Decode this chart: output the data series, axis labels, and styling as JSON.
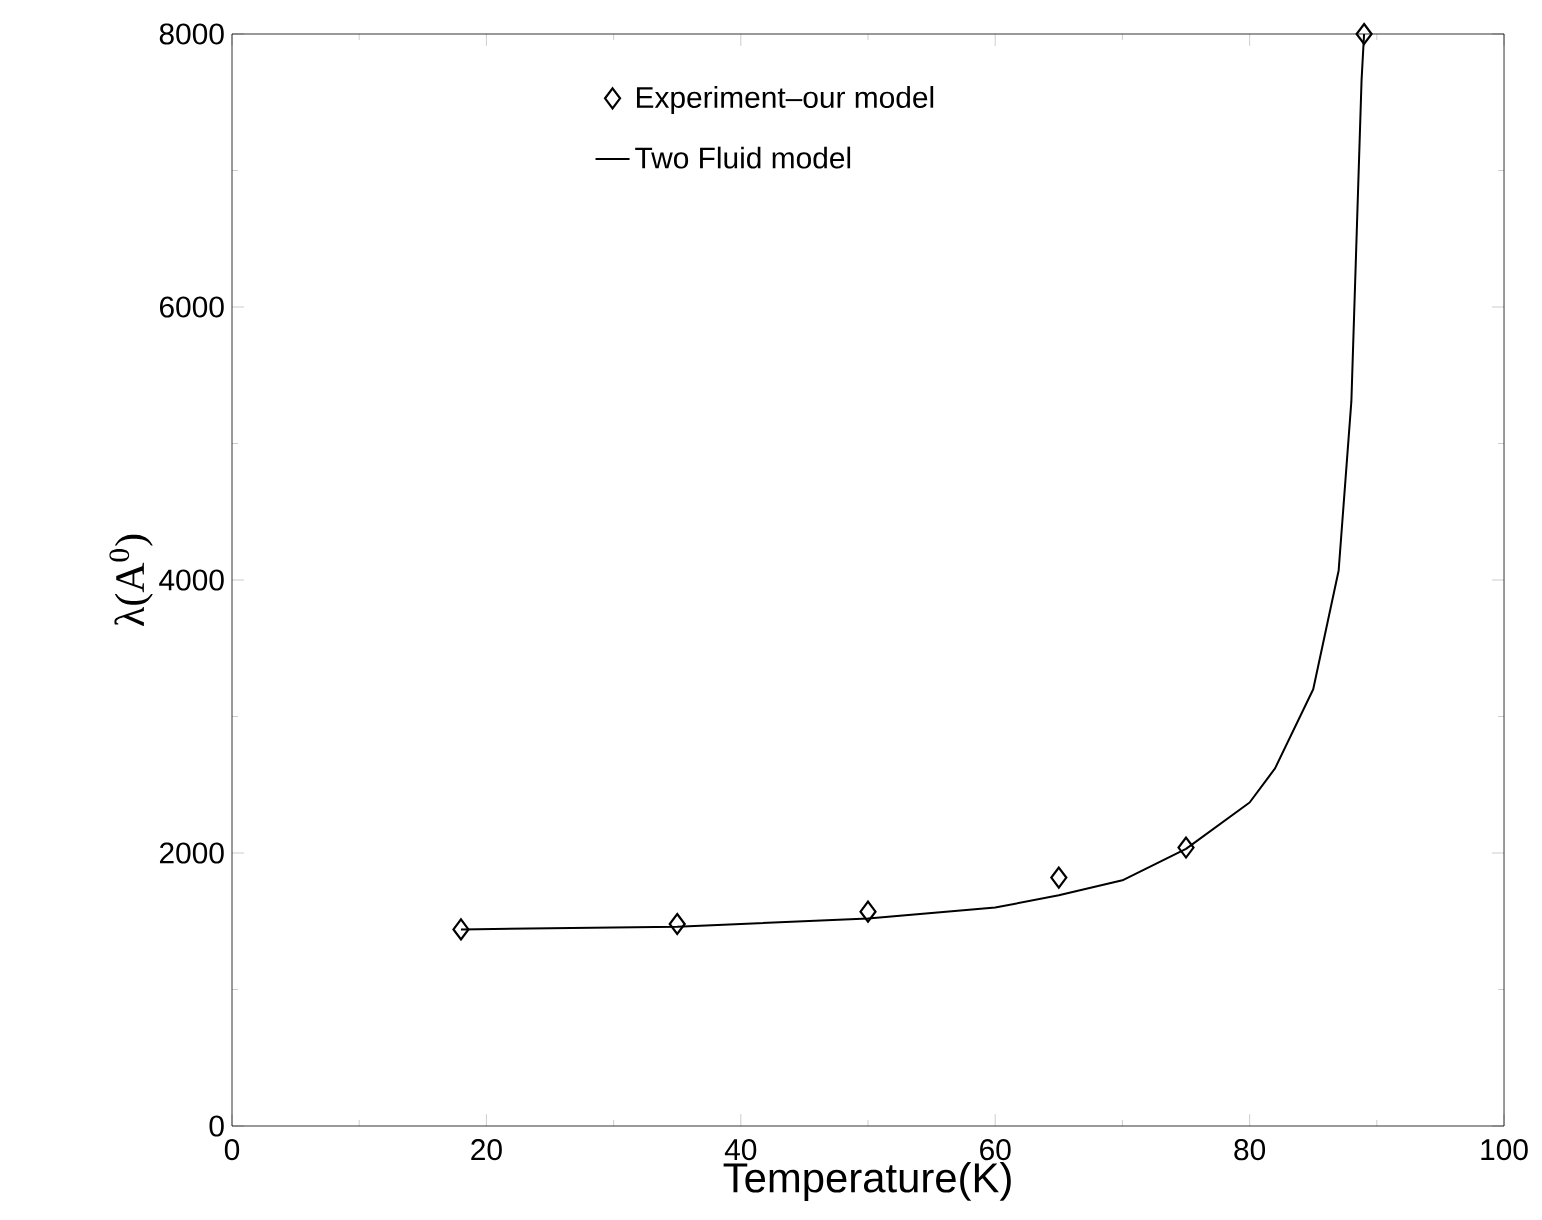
{
  "chart_data": {
    "type": "line",
    "xlabel": "Temperature(K)",
    "ylabel": "λ(A$^{0}$)",
    "xlim": [
      0,
      100
    ],
    "ylim": [
      0,
      8000
    ],
    "xticks": [
      0,
      20,
      40,
      60,
      80,
      100
    ],
    "yticks": [
      0,
      2000,
      4000,
      6000,
      8000
    ],
    "legend": "top",
    "series": [
      {
        "name": "Experiment–our model",
        "type": "scatter",
        "marker": "diamond",
        "color": "#000000",
        "x": [
          18,
          35,
          50,
          65,
          75,
          89
        ],
        "values": [
          1440,
          1480,
          1570,
          1820,
          2040,
          8000
        ]
      },
      {
        "name": "Two Fluid model",
        "line_style": "solid",
        "color": "#000000",
        "x": [
          18,
          35,
          50,
          60,
          65,
          70,
          75,
          80,
          82,
          85,
          87,
          88,
          88.8,
          89
        ],
        "values": [
          1440,
          1460,
          1520,
          1600,
          1690,
          1800,
          2030,
          2370,
          2620,
          3200,
          4070,
          5310,
          7660,
          8000
        ]
      }
    ]
  }
}
